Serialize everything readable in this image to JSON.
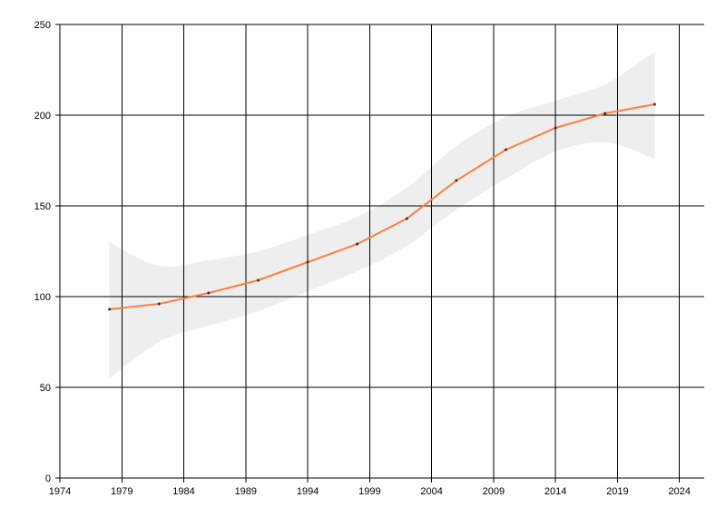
{
  "chart_data": {
    "type": "line",
    "title": "",
    "xlabel": "",
    "ylabel": "",
    "xlim": [
      1974,
      2026
    ],
    "ylim": [
      0,
      250
    ],
    "x_ticks": [
      1974,
      1979,
      1984,
      1989,
      1994,
      1999,
      2004,
      2009,
      2014,
      2019,
      2024
    ],
    "x_tick_labels": [
      "1974",
      "1979",
      "1984",
      "1989",
      "1994",
      "1999",
      "2004",
      "2009",
      "2014",
      "2019",
      "2024"
    ],
    "y_ticks": [
      0,
      50,
      100,
      150,
      200,
      250
    ],
    "y_tick_labels": [
      "0",
      "50",
      "100",
      "150",
      "200",
      "250"
    ],
    "grid": true,
    "legend": "none",
    "series": [
      {
        "x": [
          1978,
          1982,
          1986,
          1990,
          1994,
          1998,
          2002,
          2006,
          2010,
          2014,
          2018,
          2022
        ],
        "values": [
          93,
          96,
          102,
          109,
          119,
          129,
          143,
          164,
          181,
          193,
          201,
          206
        ],
        "lower": [
          55,
          75,
          84,
          92,
          103,
          114,
          128,
          148,
          165,
          180,
          185,
          176
        ],
        "upper": [
          130,
          117,
          120,
          125,
          134,
          144,
          160,
          183,
          199,
          208,
          217,
          235
        ],
        "line_color": "#ff7f3f",
        "marker_color": "#333333",
        "band_color": "#eeeeee"
      }
    ]
  }
}
